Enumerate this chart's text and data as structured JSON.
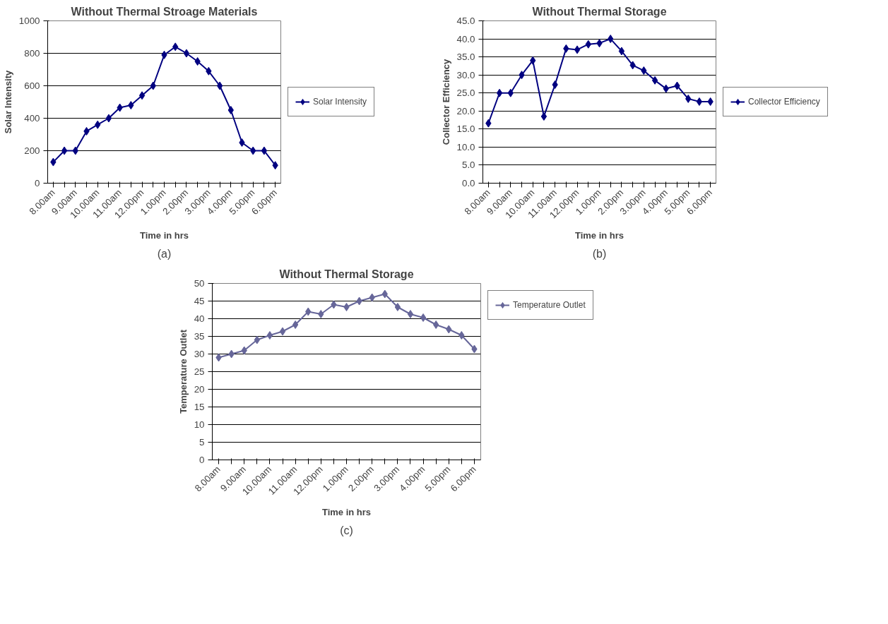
{
  "chart_data": [
    {
      "type": "line",
      "title": "Without Thermal Stroage Materials",
      "xlabel": "Time in hrs",
      "ylabel": "Solar Intensity",
      "categories": [
        "8.00am",
        null,
        "9.00am",
        null,
        "10.00am",
        null,
        "11.00am",
        null,
        "12.00pm",
        null,
        "1.00pm",
        null,
        "2.00pm",
        null,
        "3.00pm",
        null,
        "4.00pm",
        null,
        "5.00pm",
        null,
        "6.00pm"
      ],
      "series": [
        {
          "name": "Solar Intensity",
          "color": "#000080",
          "values": [
            130,
            200,
            200,
            320,
            360,
            400,
            465,
            480,
            540,
            600,
            790,
            840,
            800,
            750,
            690,
            600,
            450,
            250,
            200,
            200,
            110
          ]
        }
      ],
      "ylim": [
        0,
        1000
      ],
      "yticks": [
        0,
        200,
        400,
        600,
        800,
        1000
      ],
      "grid": "y",
      "legend": "right",
      "marker": "diamond",
      "line_style": "solid",
      "annotations": [
        "(a)"
      ]
    },
    {
      "type": "line",
      "title": "Without Thermal Storage",
      "xlabel": "Time in hrs",
      "ylabel": "Collector Efficiency",
      "categories": [
        "8.00am",
        null,
        "9.00am",
        null,
        "10.00am",
        null,
        "11.00am",
        null,
        "12.00pm",
        null,
        "1.00pm",
        null,
        "2.00pm",
        null,
        "3.00pm",
        null,
        "4.00pm",
        null,
        "5.00pm",
        null,
        "6.00pm"
      ],
      "series": [
        {
          "name": "Collector Efficiency",
          "color": "#000080",
          "values": [
            16.6,
            25,
            25,
            30,
            34,
            18.5,
            27.3,
            37.3,
            37,
            38.5,
            38.8,
            40,
            36.6,
            32.7,
            31.2,
            28.5,
            26.2,
            27,
            23.4,
            22.6,
            22.6
          ]
        }
      ],
      "ylim": [
        0,
        45
      ],
      "yticks": [
        {
          "value": 0,
          "label": "0.0"
        },
        {
          "value": 5,
          "label": "5.0"
        },
        {
          "value": 10,
          "label": "10.0"
        },
        {
          "value": 15,
          "label": "15.0"
        },
        {
          "value": 20,
          "label": "20.0"
        },
        {
          "value": 25,
          "label": "25.0"
        },
        {
          "value": 30,
          "label": "30.0"
        },
        {
          "value": 35,
          "label": "35.0"
        },
        {
          "value": 40,
          "label": "40.0"
        },
        {
          "value": 45,
          "label": "45.0"
        }
      ],
      "grid": "y",
      "legend": "right",
      "marker": "diamond",
      "line_style": "solid",
      "annotations": [
        "(b)"
      ]
    },
    {
      "type": "line",
      "title": "Without Thermal Storage",
      "xlabel": "Time in hrs",
      "ylabel": "Temperature Outlet",
      "categories": [
        "8.00am",
        null,
        "9.00am",
        null,
        "10.00am",
        null,
        "11.00am",
        null,
        "12.00pm",
        null,
        "1.00pm",
        null,
        "2.00pm",
        null,
        "3.00pm",
        null,
        "4.00pm",
        null,
        "5.00pm",
        null,
        "6.00pm"
      ],
      "series": [
        {
          "name": "Temperature Outlet",
          "color": "#666699",
          "values": [
            29,
            30,
            31,
            34,
            35.3,
            36.4,
            38.3,
            42,
            41.3,
            44,
            43.3,
            45,
            46,
            47,
            43.3,
            41.3,
            40.3,
            38.3,
            37,
            35.3,
            31.4
          ]
        }
      ],
      "ylim": [
        0,
        50
      ],
      "yticks": [
        0,
        5,
        10,
        15,
        20,
        25,
        30,
        35,
        40,
        45,
        50
      ],
      "grid": "y",
      "legend": "top right",
      "marker": "diamond",
      "line_style": "solid",
      "annotations": [
        "(c)"
      ]
    }
  ]
}
